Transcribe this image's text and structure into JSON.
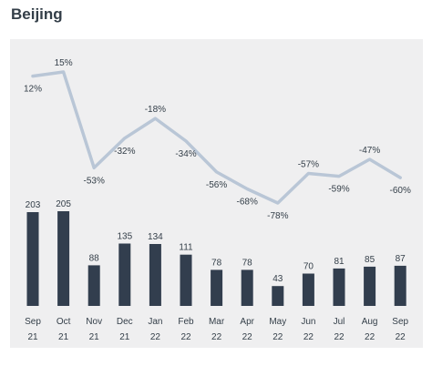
{
  "title": "Beijing",
  "chart_data": [
    {
      "type": "bar",
      "categories": [
        [
          "Sep",
          "21"
        ],
        [
          "Oct",
          "21"
        ],
        [
          "Nov",
          "21"
        ],
        [
          "Dec",
          "21"
        ],
        [
          "Jan",
          "22"
        ],
        [
          "Feb",
          "22"
        ],
        [
          "Mar",
          "22"
        ],
        [
          "Apr",
          "22"
        ],
        [
          "May",
          "22"
        ],
        [
          "Jun",
          "22"
        ],
        [
          "Jul",
          "22"
        ],
        [
          "Aug",
          "22"
        ],
        [
          "Sep",
          "22"
        ]
      ],
      "values": [
        203,
        205,
        88,
        135,
        134,
        111,
        78,
        78,
        43,
        70,
        81,
        85,
        87
      ],
      "data_labels": [
        "203",
        "205",
        "88",
        "135",
        "134",
        "111",
        "78",
        "78",
        "43",
        "70",
        "81",
        "85",
        "87"
      ],
      "ylim": [
        0,
        205
      ],
      "color": "#323e4e"
    },
    {
      "type": "line",
      "categories": [
        [
          "Sep",
          "21"
        ],
        [
          "Oct",
          "21"
        ],
        [
          "Nov",
          "21"
        ],
        [
          "Dec",
          "21"
        ],
        [
          "Jan",
          "22"
        ],
        [
          "Feb",
          "22"
        ],
        [
          "Mar",
          "22"
        ],
        [
          "Apr",
          "22"
        ],
        [
          "May",
          "22"
        ],
        [
          "Jun",
          "22"
        ],
        [
          "Jul",
          "22"
        ],
        [
          "Aug",
          "22"
        ],
        [
          "Sep",
          "22"
        ]
      ],
      "values": [
        12,
        15,
        -53,
        -32,
        -18,
        -34,
        -56,
        -68,
        -78,
        -57,
        -59,
        -47,
        -60
      ],
      "data_labels": [
        "12%",
        "15%",
        "-53%",
        "-32%",
        "-18%",
        "-34%",
        "-56%",
        "-68%",
        "-78%",
        "-57%",
        "-59%",
        "-47%",
        "-60%"
      ],
      "unit": "%",
      "ylim": [
        -78,
        15
      ],
      "color": "#b9c6d6"
    }
  ],
  "colors": {
    "panel_background": "#efeff0",
    "bar": "#323e4e",
    "line": "#b9c6d6",
    "text": "#333e48"
  }
}
